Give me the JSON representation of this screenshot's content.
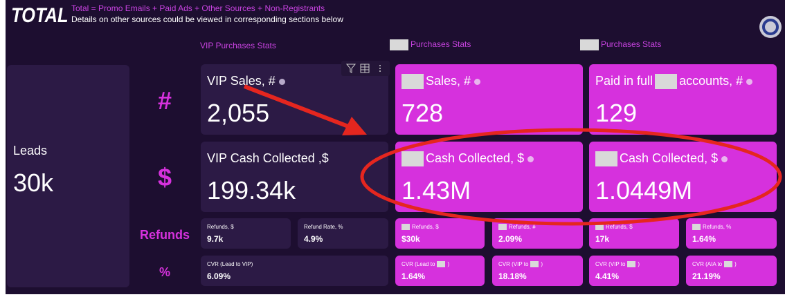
{
  "header": {
    "title": "TOTAL",
    "formula": "Total = Promo Emails + Paid Ads + Other Sources + Non-Registrants",
    "note": "Details on other sources could be viewed in corresponding sections below"
  },
  "sections": [
    "VIP Purchases Stats",
    "Purchases Stats",
    "Purchases Stats"
  ],
  "row_labels": [
    "#",
    "$",
    "Refunds",
    "%"
  ],
  "leads": {
    "label": "Leads",
    "value": "30k"
  },
  "big_cards": [
    {
      "label": "VIP Sales, #",
      "value": "2,055"
    },
    {
      "label": "Sales, #",
      "value": "728"
    },
    {
      "label": [
        "Paid in full",
        "accounts, #"
      ],
      "value": "129"
    },
    {
      "label": "VIP Cash Collected ,$",
      "value": "199.34k"
    },
    {
      "label": "Cash Collected, $",
      "value": "1.43M"
    },
    {
      "label": "Cash Collected, $",
      "value": "1.0449M"
    }
  ],
  "small_cards": [
    {
      "label": "Refunds, $",
      "value": "9.7k"
    },
    {
      "label": "Refund Rate, %",
      "value": "4.9%"
    },
    {
      "label": "Refunds, $",
      "value": "$30k"
    },
    {
      "label": "Refunds, #",
      "value": "2.09%"
    },
    {
      "label": "Refunds, $",
      "value": "17k"
    },
    {
      "label": "Refunds, %",
      "value": "1.64%"
    },
    {
      "label": "CVR (Lead to VIP)",
      "value": "6.09%"
    },
    {
      "label": [
        "CVR (Lead to",
        ")"
      ],
      "value": "1.64%"
    },
    {
      "label": [
        "CVR (VIP to",
        ")"
      ],
      "value": "18.18%"
    },
    {
      "label": [
        "CVR (VIP to",
        ")"
      ],
      "value": "4.41%"
    },
    {
      "label": [
        "CVR (AIA to",
        ")"
      ],
      "value": "21.19%"
    }
  ]
}
